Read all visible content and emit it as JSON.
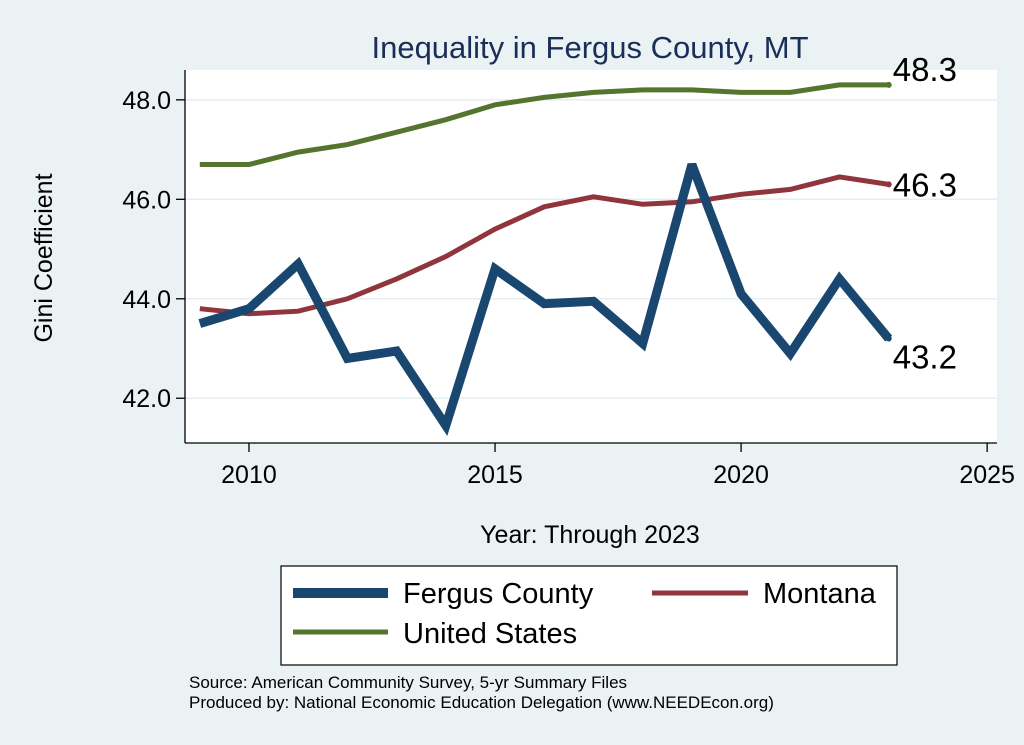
{
  "chart_data": {
    "type": "line",
    "title": "Inequality in Fergus County, MT",
    "xlabel": "Year: Through 2023",
    "ylabel": "Gini Coefficient",
    "xlim": [
      2008.7,
      2025.2
    ],
    "ylim": [
      41.1,
      48.6
    ],
    "xticks": [
      2010,
      2015,
      2020,
      2025
    ],
    "yticks": [
      42,
      44,
      46,
      48
    ],
    "ytick_labels": [
      "42.0",
      "44.0",
      "46.0",
      "48.0"
    ],
    "grid": true,
    "legend_position": "bottom",
    "x": [
      2009,
      2010,
      2011,
      2012,
      2013,
      2014,
      2015,
      2016,
      2017,
      2018,
      2019,
      2020,
      2021,
      2022,
      2023
    ],
    "series": [
      {
        "name": "Fergus County",
        "color": "#1a476f",
        "values": [
          43.5,
          43.8,
          44.7,
          42.8,
          42.95,
          41.45,
          44.6,
          43.9,
          43.95,
          43.1,
          46.7,
          44.1,
          42.9,
          44.4,
          43.2
        ],
        "end_label": "43.2"
      },
      {
        "name": "Montana",
        "color": "#90353b",
        "values": [
          43.8,
          43.7,
          43.75,
          44.0,
          44.4,
          44.85,
          45.4,
          45.85,
          46.05,
          45.9,
          45.95,
          46.1,
          46.2,
          46.45,
          46.3
        ],
        "end_label": "46.3"
      },
      {
        "name": "United States",
        "color": "#55752f",
        "values": [
          46.7,
          46.7,
          46.95,
          47.1,
          47.35,
          47.6,
          47.9,
          48.05,
          48.15,
          48.2,
          48.2,
          48.15,
          48.15,
          48.3,
          48.3
        ],
        "end_label": "48.3"
      }
    ]
  },
  "notes": {
    "source": "Source: American Community Survey, 5-yr Summary Files",
    "produced_by": "Produced by: National Economic Education Delegation (www.NEEDEcon.org)"
  }
}
